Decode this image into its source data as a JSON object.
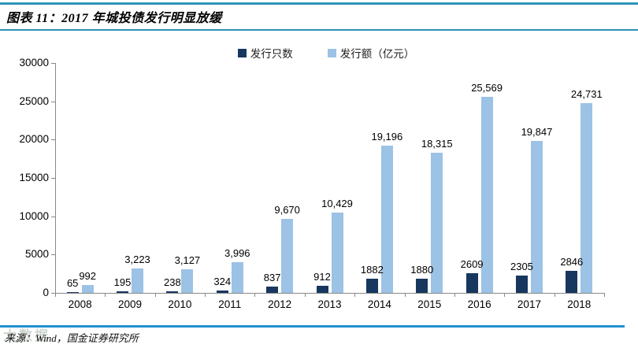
{
  "figure": {
    "title": "图表 11：2017 年城投债发行明显放缓",
    "source": "来源：Wind，国金证券研究所",
    "watermark": "大数据",
    "colors": {
      "title_rule": "#2E93B5",
      "source_rule": "#2191D0",
      "axis": "#898989",
      "dark_series": "#17375E",
      "light_series": "#9CC2E5"
    }
  },
  "chart_data": {
    "type": "bar",
    "title": "图表 11：2017 年城投债发行明显放缓",
    "categories": [
      "2008",
      "2009",
      "2010",
      "2011",
      "2012",
      "2013",
      "2014",
      "2015",
      "2016",
      "2017",
      "2018"
    ],
    "series": [
      {
        "name": "发行只数",
        "color": "#17375E",
        "values": [
          65,
          195,
          238,
          324,
          837,
          912,
          1882,
          1880,
          2609,
          2305,
          2846
        ],
        "labels": [
          "65",
          "195",
          "238",
          "324",
          "837",
          "912",
          "1882",
          "1880",
          "2609",
          "2305",
          "2846"
        ]
      },
      {
        "name": "发行额（亿元）",
        "color": "#9CC2E5",
        "values": [
          992,
          3223,
          3127,
          3996,
          9670,
          10429,
          19196,
          18315,
          25569,
          19847,
          24731
        ],
        "labels": [
          "992",
          "3,223",
          "3,127",
          "3,996",
          "9,670",
          "10,429",
          "19,196",
          "18,315",
          "25,569",
          "19,847",
          "24,731"
        ]
      }
    ],
    "ylim": [
      0,
      30000
    ],
    "ytick_step": 5000,
    "y_tick_labels": [
      "0",
      "5000",
      "10000",
      "15000",
      "20000",
      "25000",
      "30000"
    ],
    "grid": false,
    "legend_position": "top"
  }
}
